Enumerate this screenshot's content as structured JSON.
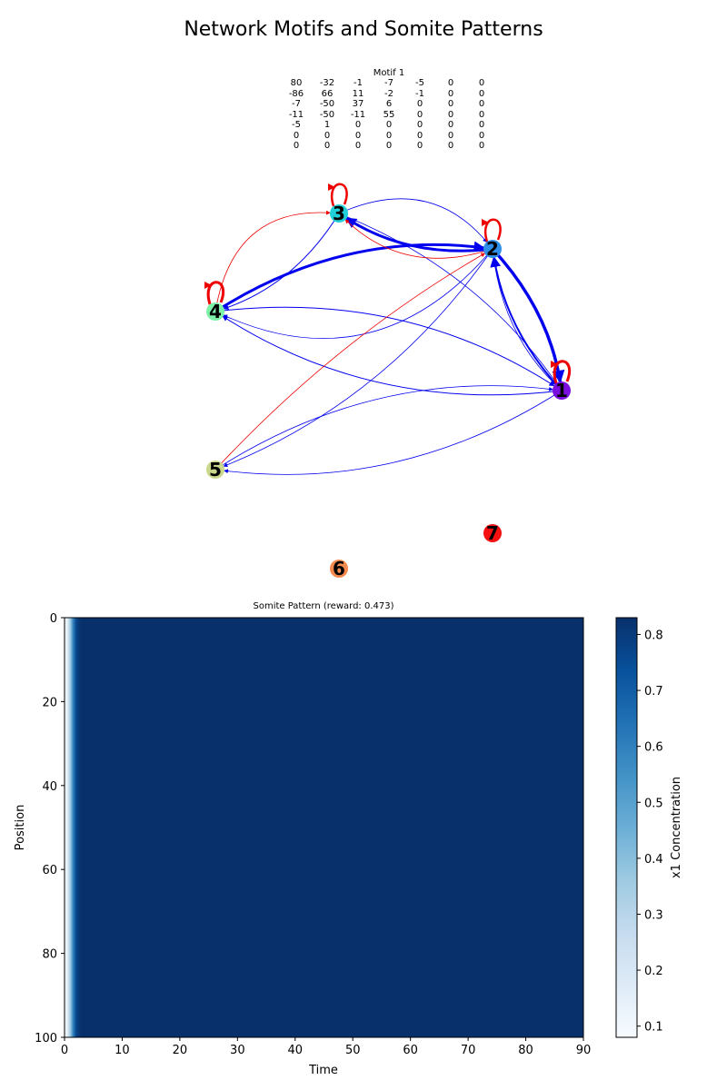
{
  "title": "Network Motifs and Somite Patterns",
  "motif": {
    "title": "Motif 1",
    "matrix": [
      [
        "80",
        "-32",
        "-1",
        "-7",
        "-5",
        "0",
        "0"
      ],
      [
        "-86",
        "66",
        "11",
        "-2",
        "-1",
        "0",
        "0"
      ],
      [
        "-7",
        "-50",
        "37",
        "6",
        "0",
        "0",
        "0"
      ],
      [
        "-11",
        "-50",
        "-11",
        "55",
        "0",
        "0",
        "0"
      ],
      [
        "-5",
        "1",
        "0",
        "0",
        "0",
        "0",
        "0"
      ],
      [
        "0",
        "0",
        "0",
        "0",
        "0",
        "0",
        "0"
      ],
      [
        "0",
        "0",
        "0",
        "0",
        "0",
        "0",
        "0"
      ]
    ]
  },
  "network": {
    "nodes": [
      {
        "id": "1",
        "color": "#7a0fe0"
      },
      {
        "id": "2",
        "color": "#2f8fe8"
      },
      {
        "id": "3",
        "color": "#1fd0d8"
      },
      {
        "id": "4",
        "color": "#7cf2a8"
      },
      {
        "id": "5",
        "color": "#c9d88a"
      },
      {
        "id": "6",
        "color": "#f58a4e"
      },
      {
        "id": "7",
        "color": "#f41010"
      }
    ],
    "edge_colors": {
      "positive": "#0000ee",
      "negative": "#ee0000"
    }
  },
  "chart_data": {
    "type": "heatmap",
    "title": "Somite Pattern (reward: 0.473)",
    "xlabel": "Time",
    "ylabel": "Position",
    "xlim": [
      0,
      90
    ],
    "ylim": [
      100,
      0
    ],
    "xticks": [
      "0",
      "10",
      "20",
      "30",
      "40",
      "50",
      "60",
      "70",
      "80",
      "90"
    ],
    "yticks": [
      "0",
      "20",
      "40",
      "60",
      "80",
      "100"
    ],
    "colorbar": {
      "label": "x1 Concentration",
      "colormap": "Blues",
      "range": [
        0.08,
        0.83
      ],
      "ticks": [
        "0.1",
        "0.2",
        "0.3",
        "0.4",
        "0.5",
        "0.6",
        "0.7",
        "0.8"
      ]
    },
    "pattern": "uniform along position; x1 concentration rises from about 0.1 at time 0 to about 0.83 by time 3, then stays at about 0.83 through time 90"
  }
}
